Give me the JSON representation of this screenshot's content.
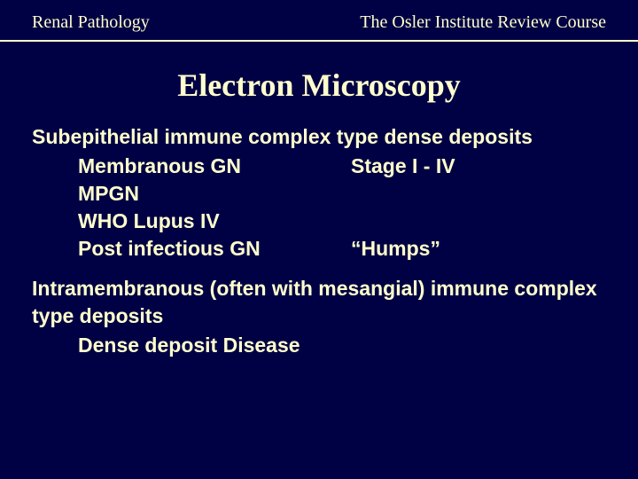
{
  "colors": {
    "background": "#000044",
    "text": "#ffffcc",
    "rule": "#ffffcc"
  },
  "typography": {
    "header_font": "Times New Roman",
    "title_font": "Times New Roman",
    "body_font": "Arial",
    "header_fontsize_pt": 15,
    "title_fontsize_pt": 27,
    "body_fontsize_pt": 17,
    "body_weight": "bold"
  },
  "header": {
    "left": "Renal Pathology",
    "right": "The Osler Institute Review Course"
  },
  "title": "Electron Microscopy",
  "sections": [
    {
      "heading": "Subepithelial immune complex type dense deposits",
      "items": [
        {
          "left": "Membranous GN",
          "right": "Stage I - IV"
        },
        {
          "left": "MPGN",
          "right": ""
        },
        {
          "left": "WHO Lupus IV",
          "right": ""
        },
        {
          "left": "Post infectious GN",
          "right": "“Humps”"
        }
      ]
    },
    {
      "heading": "Intramembranous (often with mesangial) immune complex type deposits",
      "items": [
        {
          "left": "Dense deposit Disease",
          "right": ""
        }
      ]
    }
  ]
}
